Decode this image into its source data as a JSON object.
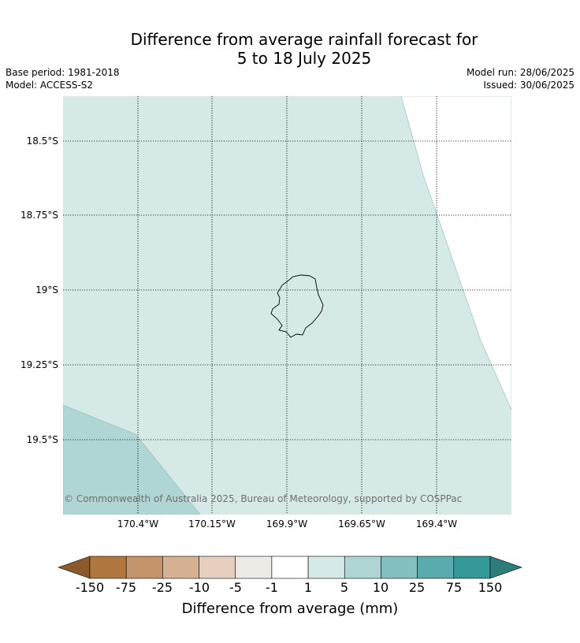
{
  "header": {
    "title_line1": "Difference from average rainfall forecast for",
    "title_line2": "5 to 18 July 2025",
    "base_period": "Base period: 1981-2018",
    "model": "Model: ACCESS-S2",
    "model_run": "Model run: 28/06/2025",
    "issued": "Issued: 30/06/2025"
  },
  "map": {
    "latitude_labels": [
      "18.5°S",
      "18.75°S",
      "19°S",
      "19.25°S",
      "19.5°S"
    ],
    "longitude_labels": [
      "170.4°W",
      "170.15°W",
      "169.9°W",
      "169.65°W",
      "169.4°W"
    ],
    "copyright": "© Commonwealth of Australia 2025, Bureau of Meteorology, supported by COSPPac",
    "region_colors": {
      "class_1_to_5": "#d5e9e7",
      "class_5_to_10": "#afd5d5",
      "no_data": "#ffffff"
    }
  },
  "colorbar": {
    "label": "Difference from average (mm)",
    "ticks": [
      "-150",
      "-75",
      "-25",
      "-10",
      "-5",
      "-1",
      "1",
      "5",
      "10",
      "25",
      "75",
      "150"
    ],
    "colors": [
      "#8c5a2a",
      "#b07840",
      "#c4956a",
      "#d4b292",
      "#e7cfbf",
      "#eeebe6",
      "#ffffff",
      "#d5e9e7",
      "#afd5d5",
      "#85c0c0",
      "#5aacac",
      "#339a98",
      "#2d7d7b"
    ]
  }
}
